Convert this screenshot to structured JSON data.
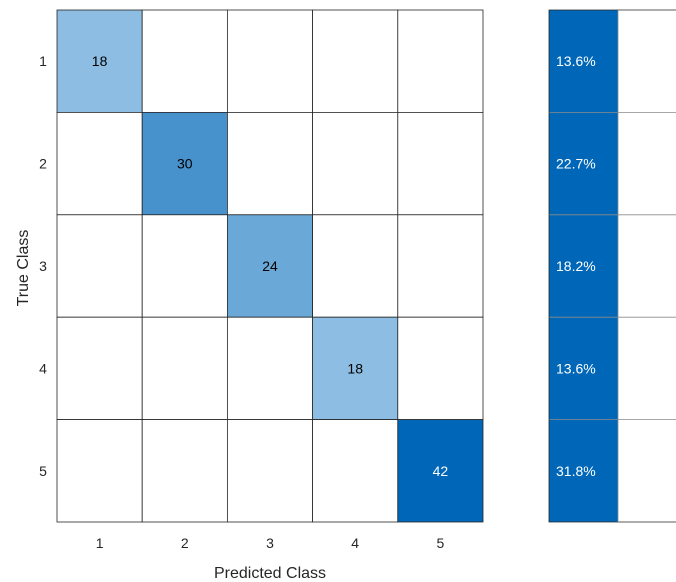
{
  "chart_data": {
    "type": "heatmap",
    "xlabel": "Predicted Class",
    "ylabel": "True Class",
    "x_ticks": [
      "1",
      "2",
      "3",
      "4",
      "5"
    ],
    "y_ticks": [
      "1",
      "2",
      "3",
      "4",
      "5"
    ],
    "matrix": [
      [
        18,
        null,
        null,
        null,
        null
      ],
      [
        null,
        30,
        null,
        null,
        null
      ],
      [
        null,
        null,
        24,
        null,
        null
      ],
      [
        null,
        null,
        null,
        18,
        null
      ],
      [
        null,
        null,
        null,
        null,
        42
      ]
    ],
    "row_summary": [
      "13.6%",
      "22.7%",
      "18.2%",
      "13.6%",
      "31.8%"
    ],
    "row_summary_values": [
      13.6,
      22.7,
      18.2,
      13.6,
      31.8
    ],
    "colors": {
      "low": "#8DBDE2",
      "high": "#0067B8",
      "summary_cell": "#0067B8",
      "grid": "#262626",
      "summary_grid": "#8c8c8c"
    }
  }
}
